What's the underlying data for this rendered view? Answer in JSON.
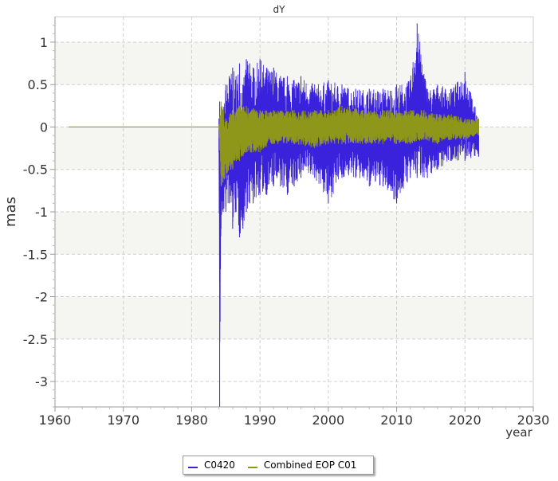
{
  "chart_data": {
    "type": "line",
    "title": "dY",
    "xlabel": "year",
    "ylabel": "mas",
    "xlim": [
      1960,
      2030
    ],
    "ylim": [
      -3.3,
      1.3
    ],
    "xticks": [
      "1960",
      "1970",
      "1980",
      "1990",
      "2000",
      "2010",
      "2020",
      "2030"
    ],
    "xtick_values": [
      1960,
      1970,
      1980,
      1990,
      2000,
      2010,
      2020,
      2030
    ],
    "yticks": [
      "1",
      "0.5",
      "0",
      "-0.5",
      "-1",
      "-1.5",
      "-2",
      "-2.5",
      "-3"
    ],
    "ytick_values": [
      1,
      0.5,
      0,
      -0.5,
      -1,
      -1.5,
      -2,
      -2.5,
      -3
    ],
    "grid": true,
    "band_fill": "#f5f5f2",
    "legend_position": "bottom",
    "series": [
      {
        "name": "C0420",
        "color": "#3a22dd",
        "x": [
          1984.0,
          1984.1,
          1984.3,
          1984.6,
          1985.0,
          1985.5,
          1986.0,
          1986.5,
          1987.0,
          1987.5,
          1988.0,
          1988.5,
          1989.0,
          1990.0,
          1991.0,
          1992.0,
          1993.0,
          1994.0,
          1995.0,
          1996.0,
          1998.0,
          2000.0,
          2002.0,
          2004.0,
          2006.0,
          2008.0,
          2010.0,
          2012.0,
          2013.0,
          2014.5,
          2016.0,
          2018.0,
          2020.0,
          2022.0
        ],
        "y_high": [
          0.1,
          0.3,
          0.0,
          0.2,
          0.5,
          0.6,
          0.7,
          0.6,
          0.75,
          0.5,
          0.8,
          0.75,
          0.7,
          0.8,
          0.7,
          0.7,
          0.6,
          0.6,
          0.55,
          0.6,
          0.5,
          0.55,
          0.5,
          0.45,
          0.45,
          0.45,
          0.5,
          0.55,
          1.22,
          0.45,
          0.5,
          0.45,
          0.65,
          0.1
        ],
        "y_low": [
          -0.3,
          -3.3,
          -1.2,
          -1.0,
          -1.0,
          -0.9,
          -1.2,
          -1.0,
          -1.3,
          -1.2,
          -1.0,
          -0.9,
          -0.9,
          -0.8,
          -0.8,
          -0.7,
          -0.7,
          -0.8,
          -0.7,
          -0.6,
          -0.6,
          -0.9,
          -0.6,
          -0.6,
          -0.7,
          -0.7,
          -0.9,
          -0.6,
          -0.6,
          -0.6,
          -0.5,
          -0.4,
          -0.4,
          -0.35
        ]
      },
      {
        "name": "Combined EOP C01",
        "color": "#8f971a",
        "x": [
          1962.0,
          1984.0,
          1984.3,
          1985.0,
          1986.0,
          1987.0,
          1988.0,
          1990.0,
          1992.0,
          1995.0,
          1998.0,
          2000.0,
          2002.0,
          2005.0,
          2008.0,
          2010.0,
          2012.0,
          2014.0,
          2016.0,
          2018.0,
          2020.0,
          2022.0
        ],
        "y_high": [
          0.0,
          0.0,
          0.3,
          0.1,
          0.2,
          0.25,
          0.25,
          0.2,
          0.2,
          0.2,
          0.2,
          0.2,
          0.25,
          0.2,
          0.2,
          0.2,
          0.2,
          0.2,
          0.15,
          0.15,
          0.1,
          0.1
        ],
        "y_low": [
          0.0,
          0.0,
          -0.7,
          -0.6,
          -0.5,
          -0.4,
          -0.3,
          -0.3,
          -0.2,
          -0.2,
          -0.25,
          -0.2,
          -0.2,
          -0.2,
          -0.2,
          -0.2,
          -0.2,
          -0.15,
          -0.2,
          -0.15,
          -0.15,
          -0.1
        ]
      }
    ]
  }
}
